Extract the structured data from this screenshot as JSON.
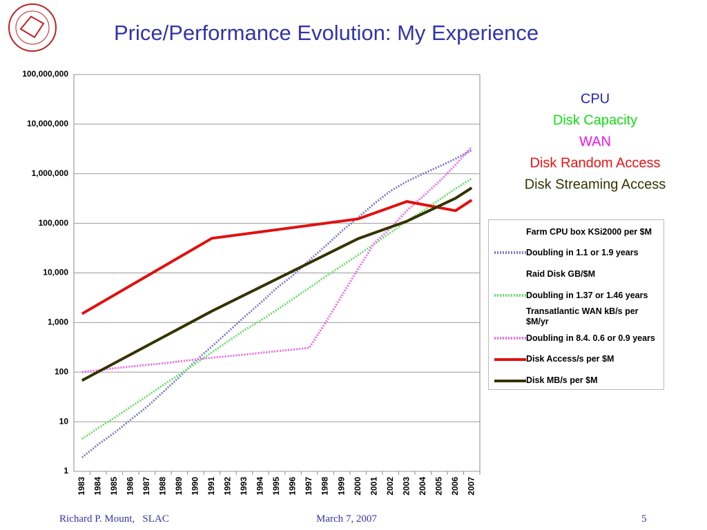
{
  "header": {
    "title": "Price/Performance Evolution: My Experience"
  },
  "chart_data": {
    "type": "line",
    "log_y": true,
    "grid": true,
    "x": [
      1983,
      1984,
      1985,
      1986,
      1987,
      1988,
      1989,
      1990,
      1991,
      1992,
      1993,
      1994,
      1995,
      1996,
      1997,
      1998,
      1999,
      2000,
      2001,
      2002,
      2003,
      2004,
      2005,
      2006,
      2007
    ],
    "xlim": [
      1982.5,
      2007.5
    ],
    "xticks": [
      1983,
      1984,
      1985,
      1986,
      1987,
      1988,
      1989,
      1990,
      1991,
      1992,
      1993,
      1994,
      1995,
      1996,
      1997,
      1998,
      1999,
      2000,
      2001,
      2002,
      2003,
      2004,
      2005,
      2006,
      2007
    ],
    "ylim": [
      1,
      100000000
    ],
    "yticks": [
      1,
      10,
      100,
      {
        "value": 1000,
        "label": "1,000"
      },
      {
        "value": 10000,
        "label": "10,000"
      },
      {
        "value": 100000,
        "label": "100,000"
      },
      {
        "value": 1000000,
        "label": "1,000,000"
      },
      {
        "value": 10000000,
        "label": "10,000,000"
      },
      {
        "value": 100000000,
        "label": "100,000,000"
      }
    ],
    "series": [
      {
        "name": "Farm CPU box KSi2000 per $M",
        "trend_name": "Doubling in 1.1 or 1.9 years",
        "color": "#7a7ac8",
        "style": "dashed",
        "values": [
          1.9,
          3.5,
          6,
          11,
          20,
          40,
          80,
          170,
          330,
          650,
          1300,
          2500,
          5000,
          9000,
          18000,
          35000,
          70000,
          130000,
          250000,
          450000,
          700000,
          1000000,
          1400000,
          2000000,
          3000000
        ]
      },
      {
        "name": "Raid Disk GB/$M",
        "trend_name": "Doubling in 1.37 or 1.46 years",
        "color": "#66dd66",
        "style": "dashed",
        "values": [
          4.5,
          7.5,
          12,
          20,
          33,
          55,
          90,
          150,
          250,
          420,
          700,
          1100,
          1800,
          3000,
          5000,
          8500,
          14000,
          23000,
          38000,
          65000,
          110000,
          180000,
          300000,
          500000,
          800000
        ]
      },
      {
        "name": "Transatlantic WAN kB/s per $M/yr",
        "trend_name": "Doubling in 8.4. 0.6 or 0.9 years",
        "color": "#ee66ee",
        "style": "dashed",
        "values": [
          100,
          110,
          120,
          130,
          140,
          150,
          165,
          180,
          195,
          210,
          225,
          245,
          265,
          285,
          310,
          1000,
          3500,
          12000,
          40000,
          80000,
          180000,
          350000,
          700000,
          1500000,
          3500000
        ]
      },
      {
        "name": "Disk Access/s per $M",
        "color": "#e01010",
        "style": "solid",
        "x": [
          1983,
          1991,
          2000,
          2003,
          2006,
          2007
        ],
        "values": [
          1500,
          50000,
          123000,
          275000,
          180000,
          295000
        ]
      },
      {
        "name": "Disk MB/s per $M",
        "color": "#333300",
        "style": "solid",
        "x": [
          1983,
          1991,
          2000,
          2003,
          2006,
          2007
        ],
        "values": [
          68,
          1700,
          49000,
          110000,
          320000,
          520000
        ]
      }
    ],
    "annotations": [
      {
        "text": "CPU",
        "color": "#2222bb"
      },
      {
        "text": "Disk Capacity",
        "color": "#11dd11"
      },
      {
        "text": "WAN",
        "color": "#ee11ee"
      },
      {
        "text": "Disk Random Access",
        "color": "#ee1111"
      },
      {
        "text": "Disk Streaming Access",
        "color": "#333300"
      }
    ]
  },
  "footer": {
    "author": "Richard P. Mount,   SLAC",
    "date": "March 7, 2007",
    "page": "5"
  }
}
